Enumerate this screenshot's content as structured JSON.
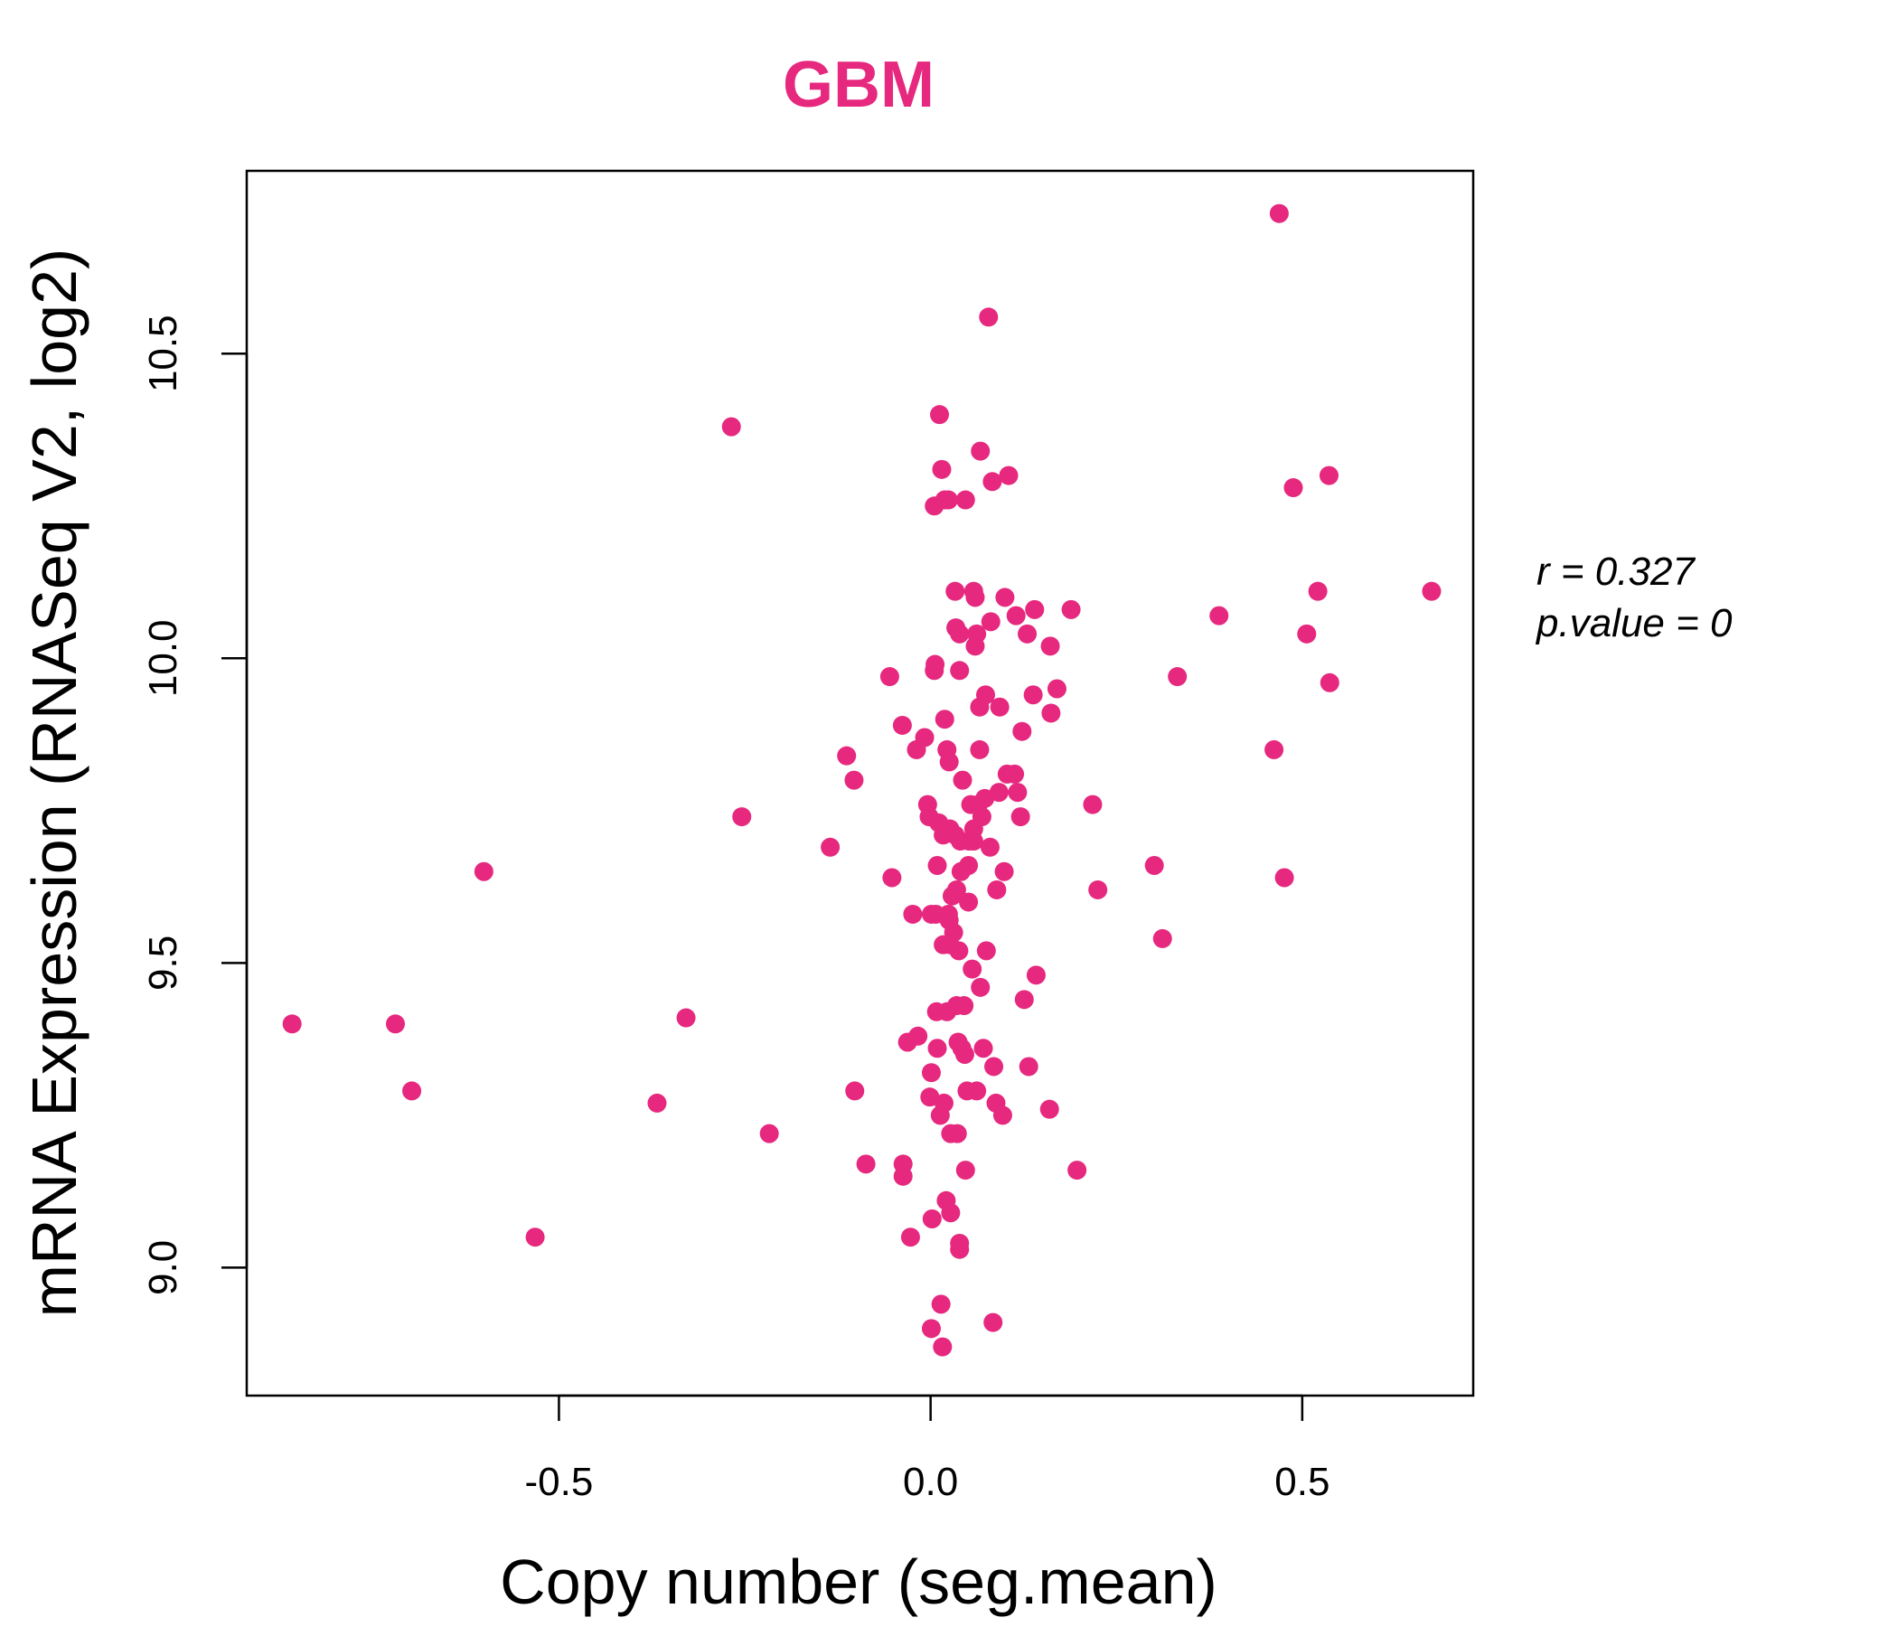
{
  "colors": {
    "accent": "#e6287e",
    "axis": "#000000",
    "background": "#ffffff"
  },
  "stats": {
    "r_label": "r = 0.327",
    "p_label": "p.value = 0"
  },
  "chart_data": {
    "type": "scatter",
    "title": "GBM",
    "xlabel": "Copy number (seg.mean)",
    "ylabel": "mRNA Expression (RNASeq V2, log2)",
    "xlim": [
      -0.92,
      0.73
    ],
    "ylim": [
      8.79,
      10.8
    ],
    "x_ticks": [
      -0.5,
      0.0,
      0.5
    ],
    "x_tick_labels": [
      "-0.5",
      "0.0",
      "0.5"
    ],
    "y_ticks": [
      9.0,
      9.5,
      10.0,
      10.5
    ],
    "y_tick_labels": [
      "9.0",
      "9.5",
      "10.0",
      "10.5"
    ],
    "grid": false,
    "legend": "none",
    "points": [
      [
        -0.859,
        9.4
      ],
      [
        -0.72,
        9.4
      ],
      [
        -0.698,
        9.29
      ],
      [
        -0.601,
        9.65
      ],
      [
        -0.532,
        9.05
      ],
      [
        -0.368,
        9.27
      ],
      [
        -0.329,
        9.41
      ],
      [
        -0.268,
        10.38
      ],
      [
        -0.254,
        9.74
      ],
      [
        -0.217,
        9.22
      ],
      [
        -0.135,
        9.69
      ],
      [
        -0.113,
        9.84
      ],
      [
        -0.103,
        9.8
      ],
      [
        -0.102,
        9.29
      ],
      [
        -0.087,
        9.17
      ],
      [
        -0.055,
        9.97
      ],
      [
        -0.052,
        9.64
      ],
      [
        -0.038,
        9.89
      ],
      [
        -0.037,
        9.17
      ],
      [
        -0.037,
        9.15
      ],
      [
        -0.031,
        9.37
      ],
      [
        -0.027,
        9.05
      ],
      [
        -0.024,
        9.58
      ],
      [
        -0.019,
        9.85
      ],
      [
        -0.017,
        9.38
      ],
      [
        -0.008,
        9.87
      ],
      [
        -0.004,
        9.76
      ],
      [
        -0.002,
        9.74
      ],
      [
        -0.001,
        9.28
      ],
      [
        0.001,
        9.58
      ],
      [
        0.001,
        9.32
      ],
      [
        0.001,
        8.9
      ],
      [
        0.002,
        9.08
      ],
      [
        0.005,
        10.25
      ],
      [
        0.005,
        9.98
      ],
      [
        0.006,
        9.99
      ],
      [
        0.007,
        9.58
      ],
      [
        0.008,
        9.42
      ],
      [
        0.009,
        9.36
      ],
      [
        0.009,
        9.66
      ],
      [
        0.011,
        9.73
      ],
      [
        0.012,
        10.4
      ],
      [
        0.013,
        9.25
      ],
      [
        0.014,
        8.94
      ],
      [
        0.015,
        10.31
      ],
      [
        0.016,
        8.87
      ],
      [
        0.017,
        9.53
      ],
      [
        0.017,
        9.71
      ],
      [
        0.018,
        9.27
      ],
      [
        0.019,
        10.26
      ],
      [
        0.019,
        9.9
      ],
      [
        0.021,
        9.11
      ],
      [
        0.022,
        9.85
      ],
      [
        0.022,
        9.42
      ],
      [
        0.024,
        10.26
      ],
      [
        0.024,
        9.58
      ],
      [
        0.025,
        9.83
      ],
      [
        0.025,
        9.57
      ],
      [
        0.026,
        9.72
      ],
      [
        0.026,
        9.53
      ],
      [
        0.027,
        9.22
      ],
      [
        0.027,
        9.09
      ],
      [
        0.029,
        9.61
      ],
      [
        0.031,
        9.55
      ],
      [
        0.033,
        10.11
      ],
      [
        0.033,
        9.71
      ],
      [
        0.034,
        10.05
      ],
      [
        0.035,
        9.62
      ],
      [
        0.035,
        9.43
      ],
      [
        0.036,
        9.22
      ],
      [
        0.037,
        9.37
      ],
      [
        0.038,
        9.52
      ],
      [
        0.039,
        10.04
      ],
      [
        0.039,
        9.98
      ],
      [
        0.039,
        9.04
      ],
      [
        0.039,
        9.03
      ],
      [
        0.04,
        9.7
      ],
      [
        0.041,
        9.65
      ],
      [
        0.042,
        9.36
      ],
      [
        0.043,
        9.8
      ],
      [
        0.045,
        9.43
      ],
      [
        0.046,
        9.35
      ],
      [
        0.047,
        10.26
      ],
      [
        0.047,
        9.16
      ],
      [
        0.049,
        9.29
      ],
      [
        0.051,
        9.66
      ],
      [
        0.051,
        9.6
      ],
      [
        0.052,
        9.7
      ],
      [
        0.054,
        9.76
      ],
      [
        0.056,
        9.49
      ],
      [
        0.058,
        10.11
      ],
      [
        0.058,
        9.7
      ],
      [
        0.058,
        9.72
      ],
      [
        0.06,
        10.02
      ],
      [
        0.06,
        10.1
      ],
      [
        0.062,
        9.29
      ],
      [
        0.062,
        10.04
      ],
      [
        0.064,
        9.76
      ],
      [
        0.066,
        9.92
      ],
      [
        0.066,
        9.85
      ],
      [
        0.067,
        10.34
      ],
      [
        0.067,
        9.46
      ],
      [
        0.069,
        9.74
      ],
      [
        0.071,
        9.36
      ],
      [
        0.073,
        9.77
      ],
      [
        0.074,
        9.94
      ],
      [
        0.075,
        9.52
      ],
      [
        0.078,
        10.56
      ],
      [
        0.08,
        9.69
      ],
      [
        0.081,
        10.06
      ],
      [
        0.083,
        10.29
      ],
      [
        0.084,
        8.91
      ],
      [
        0.085,
        9.33
      ],
      [
        0.088,
        9.27
      ],
      [
        0.089,
        9.62
      ],
      [
        0.092,
        9.78
      ],
      [
        0.093,
        9.92
      ],
      [
        0.097,
        9.25
      ],
      [
        0.099,
        9.65
      ],
      [
        0.1,
        10.1
      ],
      [
        0.103,
        9.81
      ],
      [
        0.105,
        10.3
      ],
      [
        0.113,
        9.81
      ],
      [
        0.115,
        10.07
      ],
      [
        0.117,
        9.78
      ],
      [
        0.121,
        9.74
      ],
      [
        0.123,
        9.88
      ],
      [
        0.126,
        9.44
      ],
      [
        0.13,
        10.04
      ],
      [
        0.132,
        9.33
      ],
      [
        0.138,
        9.94
      ],
      [
        0.14,
        10.08
      ],
      [
        0.142,
        9.48
      ],
      [
        0.16,
        9.26
      ],
      [
        0.161,
        10.02
      ],
      [
        0.162,
        9.91
      ],
      [
        0.17,
        9.95
      ],
      [
        0.189,
        10.08
      ],
      [
        0.197,
        9.16
      ],
      [
        0.218,
        9.76
      ],
      [
        0.225,
        9.62
      ],
      [
        0.301,
        9.66
      ],
      [
        0.312,
        9.54
      ],
      [
        0.332,
        9.97
      ],
      [
        0.388,
        10.07
      ],
      [
        0.462,
        9.85
      ],
      [
        0.469,
        10.73
      ],
      [
        0.476,
        9.64
      ],
      [
        0.488,
        10.28
      ],
      [
        0.506,
        10.04
      ],
      [
        0.521,
        10.11
      ],
      [
        0.536,
        10.3
      ],
      [
        0.537,
        9.96
      ],
      [
        0.674,
        10.11
      ]
    ]
  }
}
